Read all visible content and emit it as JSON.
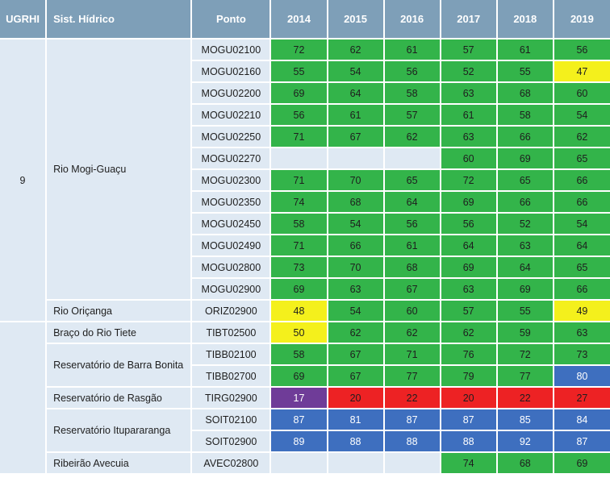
{
  "header": {
    "ugrhi": "UGRHI",
    "sist": "Sist. Hídrico",
    "ponto": "Ponto",
    "years": [
      "2014",
      "2015",
      "2016",
      "2017",
      "2018",
      "2019"
    ]
  },
  "colors": {
    "header_bg": "#7e9fb8",
    "cell_bg": "#dfe9f3",
    "good": "#33b44a",
    "regular": "#f4f01c",
    "ruim": "#ed2224",
    "pessima": "#6f3c98",
    "otima": "#3e6fbf"
  },
  "groups": [
    {
      "ugrhi": "9",
      "systems": [
        {
          "name": "Rio Mogi-Guaçu",
          "points": [
            {
              "code": "MOGU02100",
              "values": [
                [
                  "72",
                  "good"
                ],
                [
                  "62",
                  "good"
                ],
                [
                  "61",
                  "good"
                ],
                [
                  "57",
                  "good"
                ],
                [
                  "61",
                  "good"
                ],
                [
                  "56",
                  "good"
                ]
              ]
            },
            {
              "code": "MOGU02160",
              "values": [
                [
                  "55",
                  "good"
                ],
                [
                  "54",
                  "good"
                ],
                [
                  "56",
                  "good"
                ],
                [
                  "52",
                  "good"
                ],
                [
                  "55",
                  "good"
                ],
                [
                  "47",
                  "regular"
                ]
              ]
            },
            {
              "code": "MOGU02200",
              "values": [
                [
                  "69",
                  "good"
                ],
                [
                  "64",
                  "good"
                ],
                [
                  "58",
                  "good"
                ],
                [
                  "63",
                  "good"
                ],
                [
                  "68",
                  "good"
                ],
                [
                  "60",
                  "good"
                ]
              ]
            },
            {
              "code": "MOGU02210",
              "values": [
                [
                  "56",
                  "good"
                ],
                [
                  "61",
                  "good"
                ],
                [
                  "57",
                  "good"
                ],
                [
                  "61",
                  "good"
                ],
                [
                  "58",
                  "good"
                ],
                [
                  "54",
                  "good"
                ]
              ]
            },
            {
              "code": "MOGU02250",
              "values": [
                [
                  "71",
                  "good"
                ],
                [
                  "67",
                  "good"
                ],
                [
                  "62",
                  "good"
                ],
                [
                  "63",
                  "good"
                ],
                [
                  "66",
                  "good"
                ],
                [
                  "62",
                  "good"
                ]
              ]
            },
            {
              "code": "MOGU02270",
              "values": [
                [
                  "",
                  "none"
                ],
                [
                  "",
                  "none"
                ],
                [
                  "",
                  "none"
                ],
                [
                  "60",
                  "good"
                ],
                [
                  "69",
                  "good"
                ],
                [
                  "65",
                  "good"
                ]
              ]
            },
            {
              "code": "MOGU02300",
              "values": [
                [
                  "71",
                  "good"
                ],
                [
                  "70",
                  "good"
                ],
                [
                  "65",
                  "good"
                ],
                [
                  "72",
                  "good"
                ],
                [
                  "65",
                  "good"
                ],
                [
                  "66",
                  "good"
                ]
              ]
            },
            {
              "code": "MOGU02350",
              "values": [
                [
                  "74",
                  "good"
                ],
                [
                  "68",
                  "good"
                ],
                [
                  "64",
                  "good"
                ],
                [
                  "69",
                  "good"
                ],
                [
                  "66",
                  "good"
                ],
                [
                  "66",
                  "good"
                ]
              ]
            },
            {
              "code": "MOGU02450",
              "values": [
                [
                  "58",
                  "good"
                ],
                [
                  "54",
                  "good"
                ],
                [
                  "56",
                  "good"
                ],
                [
                  "56",
                  "good"
                ],
                [
                  "52",
                  "good"
                ],
                [
                  "54",
                  "good"
                ]
              ]
            },
            {
              "code": "MOGU02490",
              "values": [
                [
                  "71",
                  "good"
                ],
                [
                  "66",
                  "good"
                ],
                [
                  "61",
                  "good"
                ],
                [
                  "64",
                  "good"
                ],
                [
                  "63",
                  "good"
                ],
                [
                  "64",
                  "good"
                ]
              ]
            },
            {
              "code": "MOGU02800",
              "values": [
                [
                  "73",
                  "good"
                ],
                [
                  "70",
                  "good"
                ],
                [
                  "68",
                  "good"
                ],
                [
                  "69",
                  "good"
                ],
                [
                  "64",
                  "good"
                ],
                [
                  "65",
                  "good"
                ]
              ]
            },
            {
              "code": "MOGU02900",
              "values": [
                [
                  "69",
                  "good"
                ],
                [
                  "63",
                  "good"
                ],
                [
                  "67",
                  "good"
                ],
                [
                  "63",
                  "good"
                ],
                [
                  "69",
                  "good"
                ],
                [
                  "66",
                  "good"
                ]
              ]
            }
          ]
        },
        {
          "name": "Rio Oriçanga",
          "points": [
            {
              "code": "ORIZ02900",
              "values": [
                [
                  "48",
                  "regular"
                ],
                [
                  "54",
                  "good"
                ],
                [
                  "60",
                  "good"
                ],
                [
                  "57",
                  "good"
                ],
                [
                  "55",
                  "good"
                ],
                [
                  "49",
                  "regular"
                ]
              ]
            }
          ]
        }
      ]
    },
    {
      "ugrhi": "",
      "systems": [
        {
          "name": "Braço do Rio Tiete",
          "points": [
            {
              "code": "TIBT02500",
              "values": [
                [
                  "50",
                  "regular"
                ],
                [
                  "62",
                  "good"
                ],
                [
                  "62",
                  "good"
                ],
                [
                  "62",
                  "good"
                ],
                [
                  "59",
                  "good"
                ],
                [
                  "63",
                  "good"
                ]
              ]
            }
          ]
        },
        {
          "name": "Reservatório de Barra Bonita",
          "points": [
            {
              "code": "TIBB02100",
              "values": [
                [
                  "58",
                  "good"
                ],
                [
                  "67",
                  "good"
                ],
                [
                  "71",
                  "good"
                ],
                [
                  "76",
                  "good"
                ],
                [
                  "72",
                  "good"
                ],
                [
                  "73",
                  "good"
                ]
              ]
            },
            {
              "code": "TIBB02700",
              "values": [
                [
                  "69",
                  "good"
                ],
                [
                  "67",
                  "good"
                ],
                [
                  "77",
                  "good"
                ],
                [
                  "79",
                  "good"
                ],
                [
                  "77",
                  "good"
                ],
                [
                  "80",
                  "otima"
                ]
              ]
            }
          ]
        },
        {
          "name": "Reservatório de Rasgão",
          "points": [
            {
              "code": "TIRG02900",
              "values": [
                [
                  "17",
                  "pessima"
                ],
                [
                  "20",
                  "ruim"
                ],
                [
                  "22",
                  "ruim"
                ],
                [
                  "20",
                  "ruim"
                ],
                [
                  "22",
                  "ruim"
                ],
                [
                  "27",
                  "ruim"
                ]
              ]
            }
          ]
        },
        {
          "name": "Reservatório Itupararanga",
          "points": [
            {
              "code": "SOIT02100",
              "values": [
                [
                  "87",
                  "otima"
                ],
                [
                  "81",
                  "otima"
                ],
                [
                  "87",
                  "otima"
                ],
                [
                  "87",
                  "otima"
                ],
                [
                  "85",
                  "otima"
                ],
                [
                  "84",
                  "otima"
                ]
              ]
            },
            {
              "code": "SOIT02900",
              "values": [
                [
                  "89",
                  "otima"
                ],
                [
                  "88",
                  "otima"
                ],
                [
                  "88",
                  "otima"
                ],
                [
                  "88",
                  "otima"
                ],
                [
                  "92",
                  "otima"
                ],
                [
                  "87",
                  "otima"
                ]
              ]
            }
          ]
        },
        {
          "name": "Ribeirão Avecuia",
          "points": [
            {
              "code": "AVEC02800",
              "values": [
                [
                  "",
                  "none"
                ],
                [
                  "",
                  "none"
                ],
                [
                  "",
                  "none"
                ],
                [
                  "74",
                  "good"
                ],
                [
                  "68",
                  "good"
                ],
                [
                  "69",
                  "good"
                ]
              ]
            }
          ]
        }
      ]
    }
  ]
}
